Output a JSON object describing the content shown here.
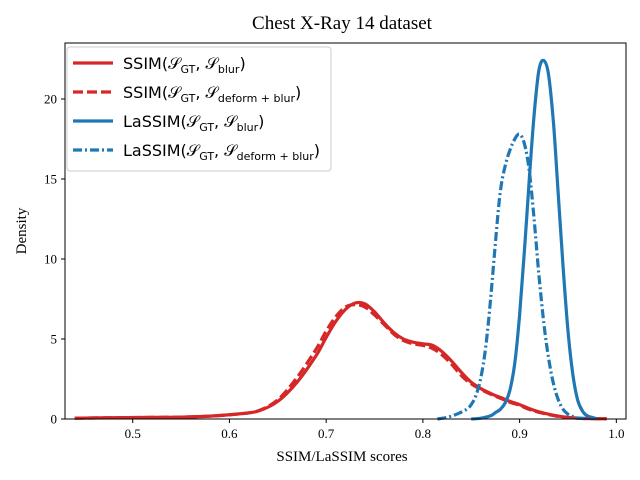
{
  "chart_data": {
    "type": "line",
    "title": "Chest X-Ray 14 dataset",
    "xlabel": "SSIM/LaSSIM scores",
    "ylabel": "Density",
    "xlim": [
      0.43,
      1.01
    ],
    "ylim": [
      0,
      23.5
    ],
    "xticks": [
      "0.5",
      "0.6",
      "0.7",
      "0.8",
      "0.9",
      "1.0"
    ],
    "yticks": [
      "0",
      "5",
      "10",
      "15",
      "20"
    ],
    "grid": false,
    "legend": "top-left",
    "series": [
      {
        "name": "SSIM(𝒮GT, 𝒮blur)",
        "legend_main": "SSIM(",
        "legend_a": "𝒮",
        "legend_a_sub": "GT",
        "legend_b": "𝒮",
        "legend_b_sub": "blur",
        "color": "#d62728",
        "style": "solid",
        "x": [
          0.44,
          0.48,
          0.52,
          0.55,
          0.58,
          0.61,
          0.63,
          0.65,
          0.67,
          0.69,
          0.7,
          0.71,
          0.72,
          0.73,
          0.74,
          0.75,
          0.76,
          0.77,
          0.78,
          0.79,
          0.8,
          0.81,
          0.82,
          0.83,
          0.84,
          0.85,
          0.86,
          0.87,
          0.88,
          0.89,
          0.9,
          0.91,
          0.92,
          0.93,
          0.94,
          0.95,
          0.96,
          0.97,
          0.98,
          0.99
        ],
        "y": [
          0.05,
          0.08,
          0.1,
          0.12,
          0.18,
          0.32,
          0.5,
          1.1,
          2.3,
          4.0,
          5.1,
          6.1,
          6.85,
          7.25,
          7.2,
          6.7,
          6.0,
          5.4,
          5.0,
          4.8,
          4.7,
          4.6,
          4.2,
          3.6,
          2.9,
          2.3,
          1.9,
          1.6,
          1.35,
          1.1,
          0.9,
          0.65,
          0.45,
          0.3,
          0.18,
          0.1,
          0.05,
          0.03,
          0.02,
          0.01
        ]
      },
      {
        "name": "SSIM(𝒮GT, 𝒮deform+blur)",
        "legend_main": "SSIM(",
        "legend_a": "𝒮",
        "legend_a_sub": "GT",
        "legend_b": "𝒮",
        "legend_b_sub": "deform + blur",
        "color": "#d62728",
        "style": "dashed",
        "x": [
          0.44,
          0.48,
          0.52,
          0.55,
          0.58,
          0.61,
          0.63,
          0.65,
          0.67,
          0.69,
          0.7,
          0.71,
          0.72,
          0.73,
          0.74,
          0.75,
          0.76,
          0.77,
          0.78,
          0.79,
          0.8,
          0.81,
          0.82,
          0.83,
          0.84,
          0.85,
          0.86,
          0.87,
          0.88,
          0.89,
          0.9,
          0.91,
          0.92,
          0.93,
          0.94,
          0.95,
          0.96,
          0.97,
          0.98,
          0.99
        ],
        "y": [
          0.05,
          0.08,
          0.1,
          0.12,
          0.18,
          0.32,
          0.52,
          1.2,
          2.6,
          4.4,
          5.5,
          6.4,
          7.0,
          7.15,
          7.0,
          6.5,
          5.9,
          5.3,
          4.9,
          4.7,
          4.6,
          4.4,
          4.0,
          3.4,
          2.7,
          2.2,
          1.85,
          1.55,
          1.3,
          1.05,
          0.85,
          0.6,
          0.42,
          0.28,
          0.16,
          0.09,
          0.05,
          0.03,
          0.02,
          0.01
        ]
      },
      {
        "name": "LaSSIM(𝒮GT, 𝒮blur)",
        "legend_main": "LaSSIM(",
        "legend_a": "𝒮",
        "legend_a_sub": "GT",
        "legend_b": "𝒮",
        "legend_b_sub": "blur",
        "color": "#1f77b4",
        "style": "solid",
        "x": [
          0.85,
          0.86,
          0.87,
          0.875,
          0.88,
          0.885,
          0.89,
          0.895,
          0.9,
          0.905,
          0.91,
          0.915,
          0.92,
          0.925,
          0.93,
          0.935,
          0.94,
          0.945,
          0.95,
          0.955,
          0.96,
          0.965,
          0.97,
          0.98
        ],
        "y": [
          0.0,
          0.05,
          0.2,
          0.4,
          0.6,
          1.0,
          1.8,
          3.5,
          6.5,
          10.5,
          15.0,
          19.0,
          21.8,
          22.4,
          21.5,
          18.5,
          14.0,
          9.5,
          5.5,
          2.8,
          1.2,
          0.5,
          0.2,
          0.02
        ]
      },
      {
        "name": "LaSSIM(𝒮GT, 𝒮deform+blur)",
        "legend_main": "LaSSIM(",
        "legend_a": "𝒮",
        "legend_a_sub": "GT",
        "legend_b": "𝒮",
        "legend_b_sub": "deform + blur",
        "color": "#1f77b4",
        "style": "dashdot",
        "x": [
          0.815,
          0.825,
          0.835,
          0.845,
          0.85,
          0.855,
          0.86,
          0.865,
          0.87,
          0.875,
          0.88,
          0.885,
          0.89,
          0.895,
          0.9,
          0.905,
          0.91,
          0.915,
          0.92,
          0.925,
          0.93,
          0.935,
          0.94,
          0.945,
          0.95,
          0.955,
          0.96,
          0.97
        ],
        "y": [
          0.0,
          0.1,
          0.3,
          0.6,
          0.9,
          1.5,
          2.6,
          4.5,
          7.5,
          11.0,
          14.2,
          15.8,
          16.8,
          17.5,
          17.8,
          17.2,
          15.5,
          12.5,
          9.0,
          6.0,
          3.8,
          2.2,
          1.2,
          0.6,
          0.3,
          0.15,
          0.06,
          0.01
        ]
      }
    ]
  }
}
